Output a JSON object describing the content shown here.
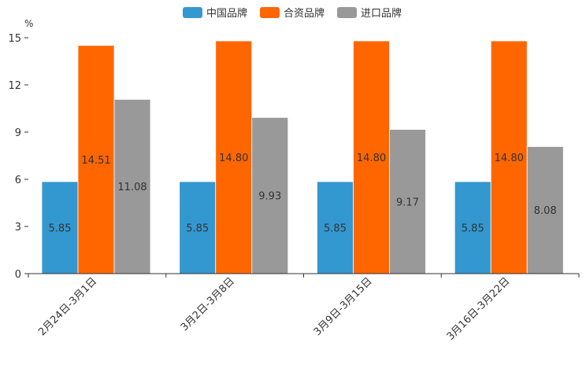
{
  "chart_data": {
    "type": "bar",
    "ylabel": "%",
    "ylim": [
      0,
      15
    ],
    "yticks": [
      "0",
      "3",
      "6",
      "9",
      "12",
      "15"
    ],
    "categories": [
      "2月24日-3月1日",
      "3月2日-3月8日",
      "3月9日-3月15日",
      "3月16日-3月22日"
    ],
    "series": [
      {
        "name": "中国品牌",
        "color": "#3398d0",
        "values": [
          5.85,
          5.85,
          5.85,
          5.85
        ],
        "labels": [
          "5.85",
          "5.85",
          "5.85",
          "5.85"
        ]
      },
      {
        "name": "合资品牌",
        "color": "#ff6600",
        "values": [
          14.51,
          14.8,
          14.8,
          14.8
        ],
        "labels": [
          "14.51",
          "14.80",
          "14.80",
          "14.80"
        ]
      },
      {
        "name": "进口品牌",
        "color": "#999999",
        "values": [
          11.08,
          9.93,
          9.17,
          8.08
        ],
        "labels": [
          "11.08",
          "9.93",
          "9.17",
          "8.08"
        ]
      }
    ]
  }
}
